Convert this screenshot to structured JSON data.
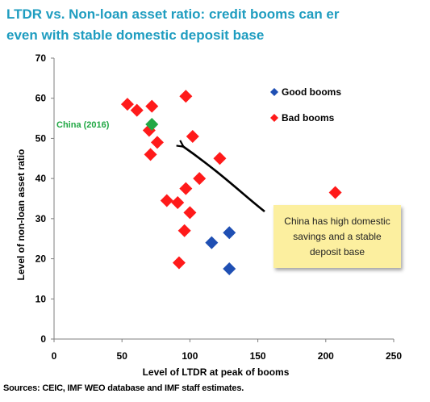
{
  "title_line1": "LTDR vs. Non-loan asset ratio: credit booms can er",
  "title_line2": "even with stable domestic deposit base",
  "source": "Sources: CEIC, IMF WEO database and IMF staff estimates.",
  "note": "China has high domestic savings and a stable deposit base",
  "colors": {
    "good": "#1f4fb3",
    "bad": "#ff1a1a",
    "china": "#22a845",
    "title": "#1f9dc0",
    "note_bg": "#fcef9f"
  },
  "chart_data": {
    "type": "scatter",
    "xlabel": "Level of LTDR at peak of booms",
    "ylabel": "Level of non-loan asset ratio",
    "xlim": [
      0,
      250
    ],
    "ylim": [
      0,
      70
    ],
    "xticks": [
      0,
      50,
      100,
      150,
      200,
      250
    ],
    "yticks": [
      0,
      10,
      20,
      30,
      40,
      50,
      60,
      70
    ],
    "grid": false,
    "legend_position": "top-right",
    "series": [
      {
        "name": "Good booms",
        "marker": "diamond",
        "points": [
          [
            116,
            24
          ],
          [
            129,
            26.5
          ],
          [
            129,
            17.5
          ]
        ]
      },
      {
        "name": "Bad booms",
        "marker": "diamond",
        "points": [
          [
            54,
            58.5
          ],
          [
            61,
            57
          ],
          [
            72,
            58
          ],
          [
            97,
            60.5
          ],
          [
            70,
            52
          ],
          [
            76,
            49
          ],
          [
            71,
            46
          ],
          [
            102,
            50.5
          ],
          [
            122,
            45
          ],
          [
            107,
            40
          ],
          [
            97,
            37.5
          ],
          [
            83,
            34.5
          ],
          [
            91,
            34
          ],
          [
            100,
            31.5
          ],
          [
            96,
            27
          ],
          [
            92,
            19
          ],
          [
            207,
            36.5
          ]
        ]
      }
    ],
    "annotations": [
      {
        "label": "China (2016)",
        "x": 72,
        "y": 53.5
      }
    ]
  }
}
